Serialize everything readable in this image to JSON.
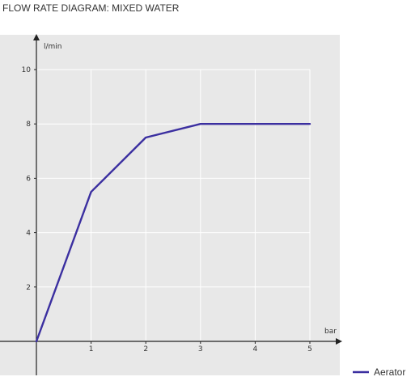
{
  "title": "FLOW RATE DIAGRAM: MIXED WATER",
  "chart_data": {
    "type": "line",
    "title": "FLOW RATE DIAGRAM: MIXED WATER",
    "xlabel": "bar",
    "ylabel": "l/min",
    "xlim": [
      0,
      5
    ],
    "ylim": [
      0,
      10
    ],
    "x_ticks": [
      "1",
      "2",
      "3",
      "4",
      "5"
    ],
    "y_ticks": [
      "2",
      "4",
      "6",
      "8",
      "10"
    ],
    "grid": true,
    "legend_position": "bottom-right",
    "series": [
      {
        "name": "Aerator",
        "color": "#3b2fa0",
        "x": [
          0,
          1,
          2,
          3,
          4,
          5
        ],
        "y": [
          0,
          5.5,
          7.5,
          8,
          8,
          8
        ]
      }
    ]
  },
  "colors": {
    "plot_background": "#e8e8e8",
    "grid": "#ffffff",
    "axis": "#222222"
  }
}
